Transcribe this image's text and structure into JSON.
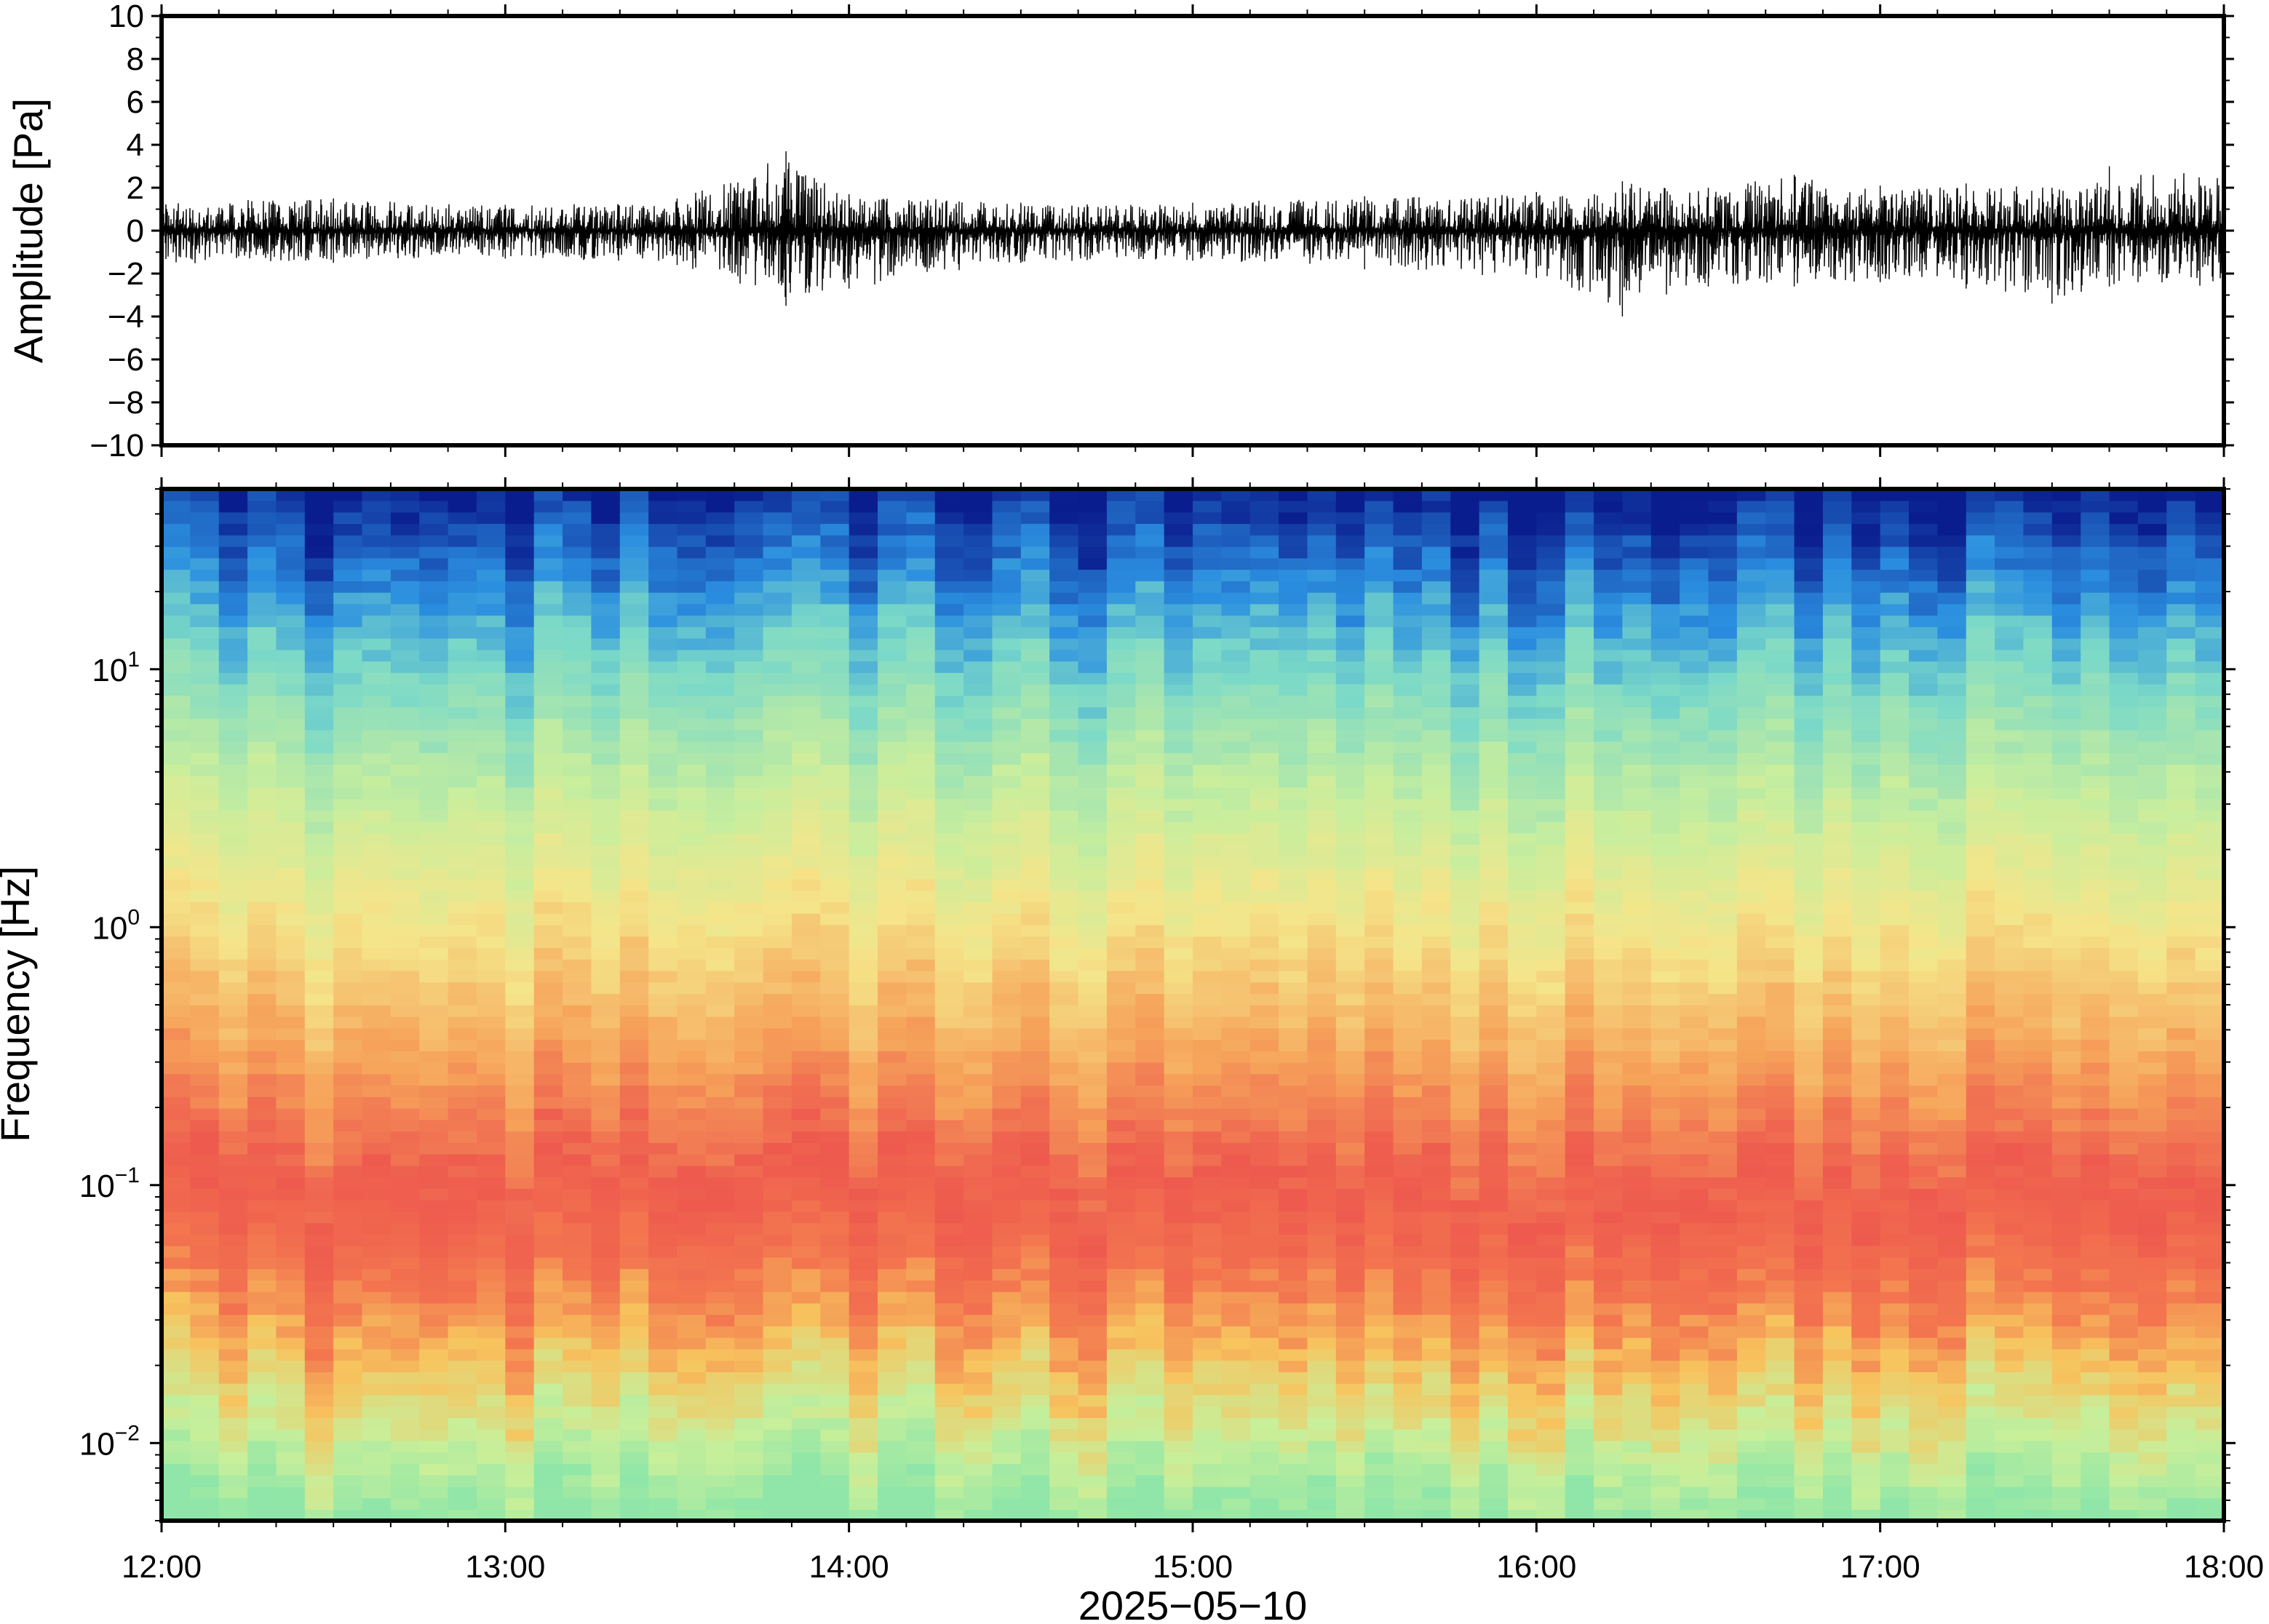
{
  "chart_data": [
    {
      "type": "line",
      "panel": "waveform",
      "ylabel": "Amplitude [Pa]",
      "xlabel": "",
      "ylim": [
        -10,
        10
      ],
      "yticks": [
        -10,
        -8,
        -6,
        -4,
        -2,
        0,
        2,
        4,
        6,
        8,
        10
      ],
      "ytick_labels": [
        "−10",
        "−8",
        "−6",
        "−4",
        "−2",
        "0",
        "2",
        "4",
        "6",
        "8",
        "10"
      ],
      "xlim": [
        "12:00",
        "18:00"
      ],
      "grid": false,
      "line_color": "#000000",
      "envelope": {
        "x": [
          "12:00",
          "12:30",
          "13:00",
          "13:30",
          "13:49",
          "14:00",
          "14:30",
          "15:00",
          "15:30",
          "16:00",
          "16:15",
          "16:30",
          "16:45",
          "17:00",
          "17:15",
          "17:30",
          "17:40",
          "18:00"
        ],
        "ymax": [
          1.4,
          1.5,
          1.2,
          1.5,
          3.7,
          1.7,
          1.3,
          1.3,
          1.6,
          1.8,
          2.3,
          2.0,
          2.6,
          2.1,
          2.2,
          2.0,
          3.0,
          2.7
        ],
        "ymin": [
          -1.6,
          -1.5,
          -1.3,
          -1.6,
          -3.5,
          -2.7,
          -1.5,
          -1.4,
          -1.8,
          -2.2,
          -4.0,
          -2.6,
          -2.6,
          -2.4,
          -2.7,
          -3.4,
          -2.6,
          -2.6
        ]
      }
    },
    {
      "type": "heatmap",
      "panel": "spectrogram",
      "ylabel": "Frequency [Hz]",
      "xlabel": "2025−05−10",
      "yscale": "log",
      "ylim": [
        0.005,
        50
      ],
      "ytick_labels": [
        {
          "base": "10",
          "exp": "−2",
          "value": 0.01
        },
        {
          "base": "10",
          "exp": "−1",
          "value": 0.1
        },
        {
          "base": "10",
          "exp": "0",
          "value": 1
        },
        {
          "base": "10",
          "exp": "1",
          "value": 10
        }
      ],
      "xlim": [
        "12:00",
        "18:00"
      ],
      "xtick_labels": [
        "12:00",
        "13:00",
        "14:00",
        "15:00",
        "16:00",
        "17:00",
        "18:00"
      ],
      "colormap": "jet",
      "color_profile_by_frequency": [
        {
          "freq": 0.005,
          "color": "#8fe6a8"
        },
        {
          "freq": 0.01,
          "color": "#c8ef9a"
        },
        {
          "freq": 0.02,
          "color": "#f7c45e"
        },
        {
          "freq": 0.04,
          "color": "#f3764f"
        },
        {
          "freq": 0.1,
          "color": "#ee5a4e"
        },
        {
          "freq": 0.3,
          "color": "#f6a35a"
        },
        {
          "freq": 1,
          "color": "#f5e58a"
        },
        {
          "freq": 3,
          "color": "#c8ee9d"
        },
        {
          "freq": 10,
          "color": "#7ad9c8"
        },
        {
          "freq": 20,
          "color": "#2b8fe0"
        },
        {
          "freq": 50,
          "color": "#0a1d8e"
        }
      ],
      "grid": false
    }
  ]
}
